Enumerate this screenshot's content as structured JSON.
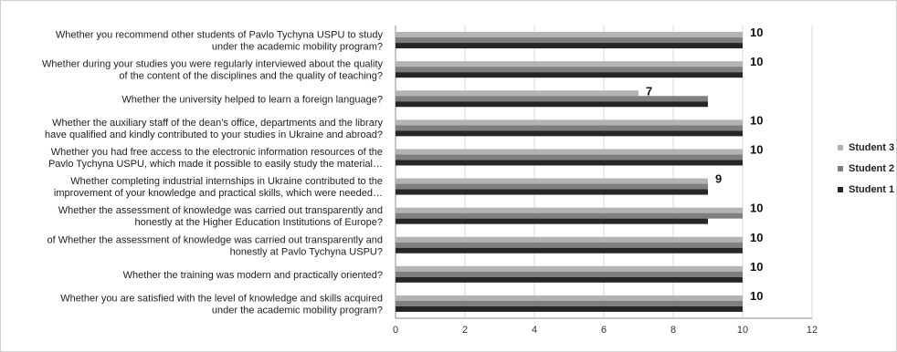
{
  "chart_data": {
    "type": "bar",
    "orientation": "horizontal",
    "categories": [
      [
        "Whether you recommend other students of Pavlo Tychyna USPU to study",
        "under the academic mobility program?"
      ],
      [
        "Whether during your studies you were regularly interviewed about the quality",
        "of the content of the disciplines and the quality of teaching?"
      ],
      [
        "Whether the university helped to learn a foreign language?"
      ],
      [
        "Whether the auxiliary staff of the dean's office, departments and the library",
        "have qualified and kindly contributed to your studies in Ukraine and abroad?"
      ],
      [
        "Whether you had free access to the electronic information resources of the",
        "Pavlo Tychyna USPU, which made it possible to easily study the material…"
      ],
      [
        "Whether completing industrial internships in Ukraine contributed to the",
        "improvement of your knowledge and practical skills, which were needed…"
      ],
      [
        "Whether the assessment of knowledge was carried out transparently and",
        "honestly at the Higher Education Institutions of Europe?"
      ],
      [
        "of Whether the assessment of knowledge was carried out transparently and",
        "honestly at Pavlo Tychyna USPU?"
      ],
      [
        "Whether the training was modern and practically oriented?"
      ],
      [
        "Whether you are satisfied with the level of knowledge and skills acquired",
        "under the academic mobility program?"
      ]
    ],
    "series": [
      {
        "name": "Student  3",
        "color": "#b3b3b3",
        "values": [
          10,
          10,
          7,
          10,
          10,
          9,
          10,
          10,
          10,
          10
        ]
      },
      {
        "name": "Student  2",
        "color": "#7f7f7f",
        "values": [
          10,
          10,
          9,
          10,
          10,
          9,
          10,
          10,
          10,
          10
        ]
      },
      {
        "name": "Student 1",
        "color": "#262626",
        "values": [
          10,
          10,
          9,
          10,
          10,
          9,
          9,
          10,
          10,
          10
        ]
      }
    ],
    "data_labels": [
      "10",
      "10",
      "7",
      "10",
      "10",
      "9",
      "10",
      "10",
      "10",
      "10"
    ],
    "x_ticks": [
      0,
      2,
      4,
      6,
      8,
      10,
      12
    ],
    "xlim": [
      0,
      12
    ],
    "grid": "vertical",
    "legend": "right"
  }
}
